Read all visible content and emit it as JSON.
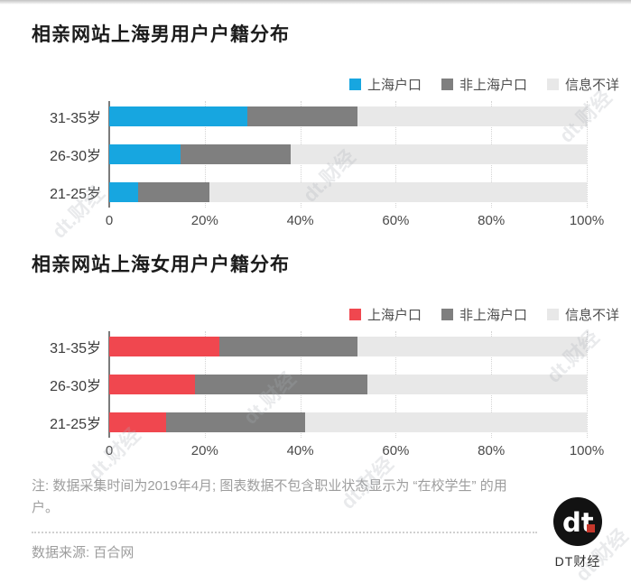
{
  "chart_data": [
    {
      "type": "bar",
      "stacked": true,
      "orientation": "horizontal",
      "title": "相亲网站上海男用户户籍分布",
      "categories": [
        "31-35岁",
        "26-30岁",
        "21-25岁"
      ],
      "series": [
        {
          "name": "上海户口",
          "color": "#17a6e0",
          "values": [
            29,
            15,
            6
          ]
        },
        {
          "name": "非上海户口",
          "color": "#7f7f7f",
          "values": [
            23,
            23,
            15
          ]
        },
        {
          "name": "信息不详",
          "color": "#e8e8e8",
          "values": [
            48,
            62,
            79
          ]
        }
      ],
      "x_ticks": [
        "0",
        "20%",
        "40%",
        "60%",
        "80%",
        "100%"
      ],
      "xlim": [
        0,
        100
      ],
      "grid": "dotted-vertical",
      "legend_position": "top-right"
    },
    {
      "type": "bar",
      "stacked": true,
      "orientation": "horizontal",
      "title": "相亲网站上海女用户户籍分布",
      "categories": [
        "31-35岁",
        "26-30岁",
        "21-25岁"
      ],
      "series": [
        {
          "name": "上海户口",
          "color": "#f0474f",
          "values": [
            23,
            18,
            12
          ]
        },
        {
          "name": "非上海户口",
          "color": "#7f7f7f",
          "values": [
            29,
            36,
            29
          ]
        },
        {
          "name": "信息不详",
          "color": "#e8e8e8",
          "values": [
            48,
            46,
            59
          ]
        }
      ],
      "x_ticks": [
        "0",
        "20%",
        "40%",
        "60%",
        "80%",
        "100%"
      ],
      "xlim": [
        0,
        100
      ],
      "grid": "dotted-vertical",
      "legend_position": "top-right"
    }
  ],
  "footer": {
    "note": "注: 数据采集时间为2019年4月; 图表数据不包含职业状态显示为 “在校学生” 的用户。",
    "source": "数据来源: 百合网",
    "logo_mark": "dt",
    "logo_caption": "DT财经",
    "logo_bg": "#121212",
    "logo_dot_color": "#c6372b"
  },
  "watermark": "dt.财经"
}
